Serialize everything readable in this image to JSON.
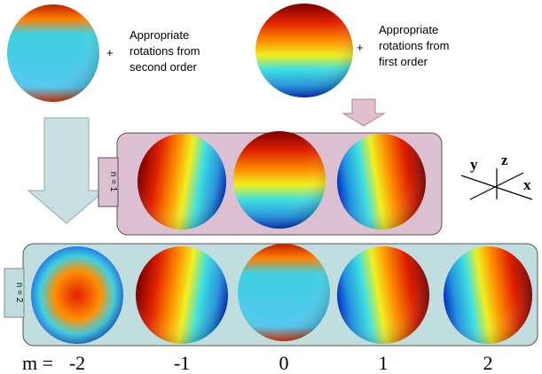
{
  "top_left": {
    "plus": "+",
    "lines": [
      "Appropriate",
      "rotations from",
      "second order"
    ]
  },
  "top_right": {
    "plus": "+",
    "lines": [
      "Appropriate",
      "rotations from",
      "first order"
    ]
  },
  "row_n1": {
    "label": "n = 1"
  },
  "row_n2": {
    "label": "n = 2"
  },
  "axes": {
    "y": "y",
    "z": "z",
    "x": "x"
  },
  "m_row": {
    "label": "m =",
    "values": [
      "-2",
      "-1",
      "0",
      "1",
      "2"
    ]
  }
}
